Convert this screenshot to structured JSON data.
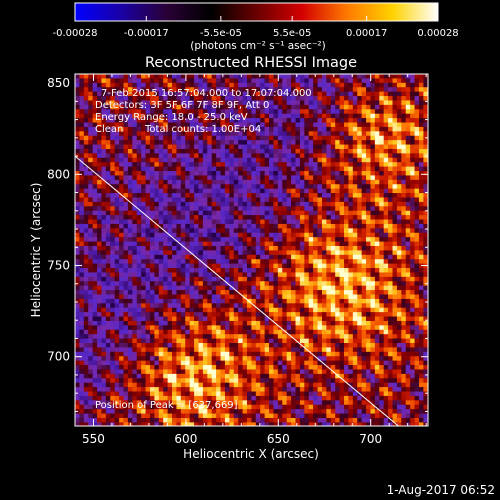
{
  "colorbar": {
    "tick_labels": [
      "-0.00028",
      "-0.00017",
      "-5.5e-05",
      "5.5e-05",
      "0.00017",
      "0.00028"
    ],
    "tick_values": [
      -0.00028,
      -0.00017,
      -5.5e-05,
      5.5e-05,
      0.00017,
      0.00028
    ],
    "range": [
      -0.00028,
      0.00028
    ],
    "unit_label": "(photons cm⁻² s⁻¹ asec⁻²)",
    "stops": [
      "#0000ff",
      "#1a00a8",
      "#2a0038",
      "#000000",
      "#6a0000",
      "#d40000",
      "#ff7a00",
      "#ffd200",
      "#ffffff"
    ]
  },
  "chart_data": {
    "type": "heatmap",
    "title": "Reconstructed RHESSI Image",
    "xlabel": "Heliocentric X (arcsec)",
    "ylabel": "Heliocentric Y (arcsec)",
    "xlim": [
      540,
      731
    ],
    "ylim": [
      662,
      855
    ],
    "x_ticks": [
      550,
      600,
      650,
      700
    ],
    "y_ticks": [
      700,
      750,
      800
    ],
    "limb_line": [
      [
        540,
        810
      ],
      [
        715,
        662
      ]
    ],
    "peak": [
      637,
      669
    ],
    "annotations": {
      "time_range": "7-Feb-2015 16:57:04.000 to 17:07:04.000",
      "detectors": "Detectors: 3F 5F 6F 7F 8F 9F, Att 0",
      "energy_range": "Energy Range: 18.0 - 25.0 keV",
      "method": "Clean",
      "total_counts": "Total counts: 1.00E+04",
      "peak_label": "Position of Peak = [637,669]"
    }
  },
  "footer": {
    "date": "1-Aug-2017 06:52"
  }
}
